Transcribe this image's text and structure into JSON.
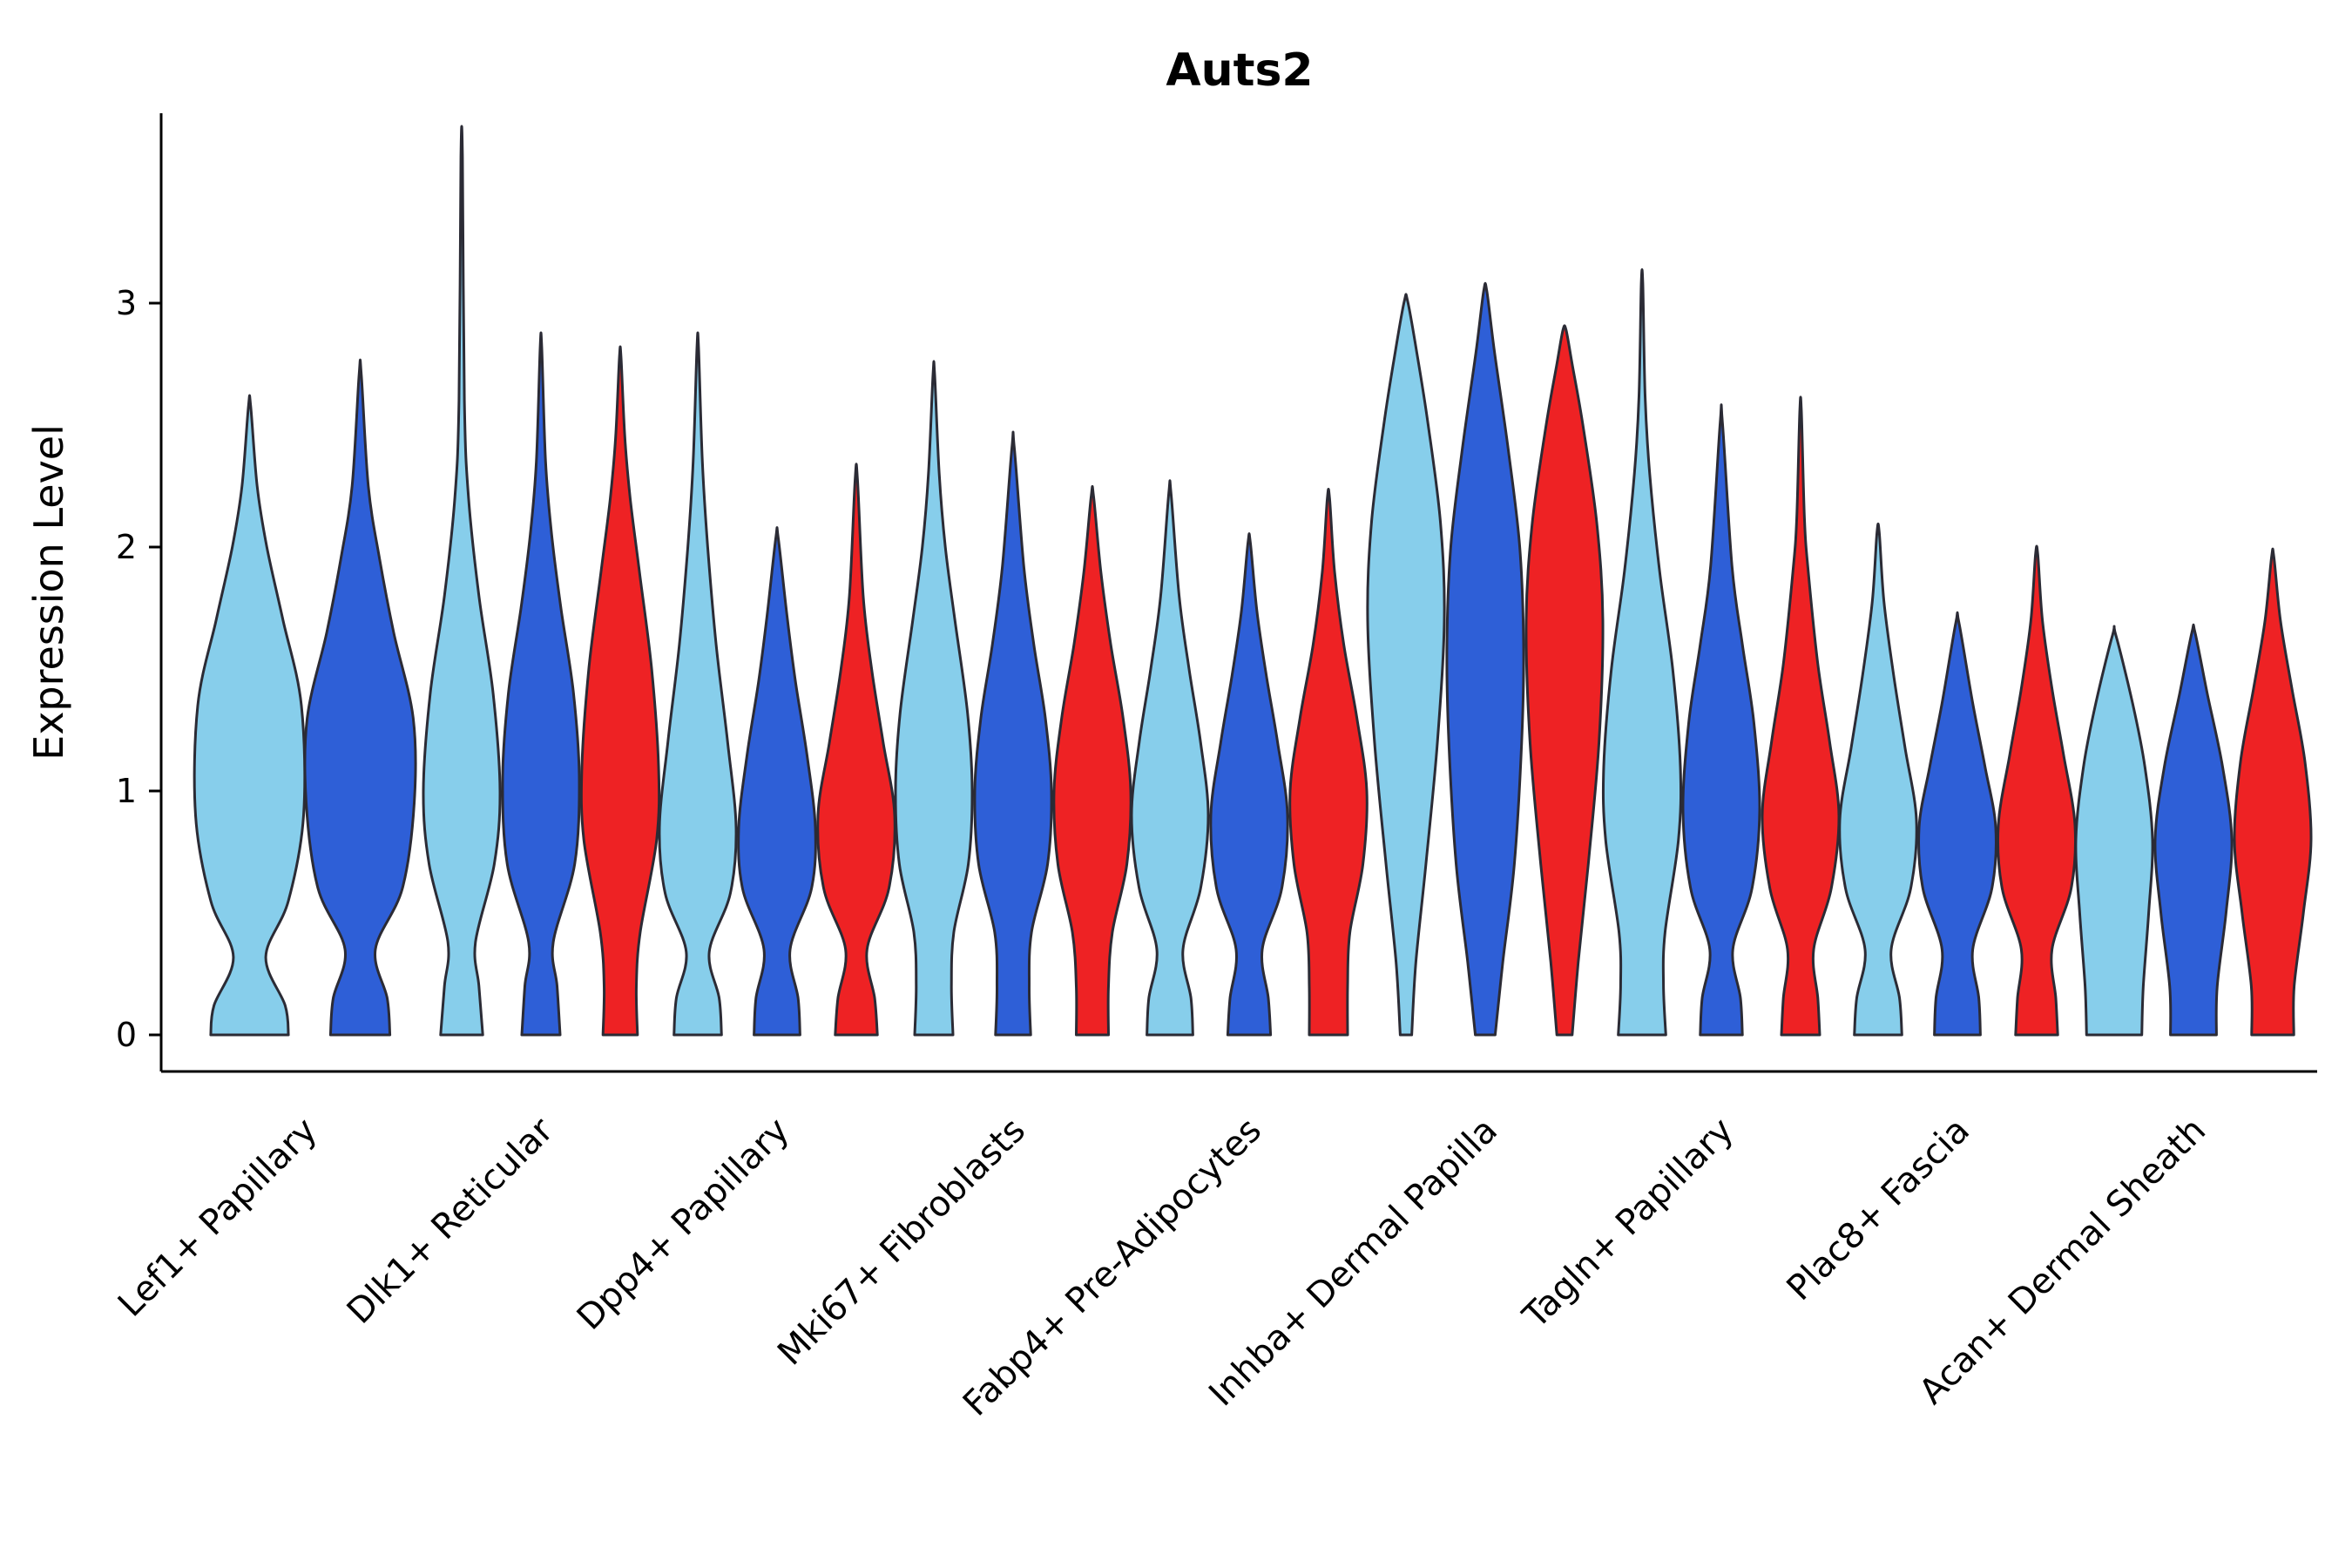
{
  "chart_data": {
    "type": "violin",
    "title": "Auts2",
    "xlabel": "",
    "ylabel": "Expression Level",
    "y_ticks": [
      0,
      1,
      2,
      3
    ],
    "ylim": [
      0,
      3.75
    ],
    "grid": false,
    "legend": "none",
    "colors": {
      "outline": "#2b2b35",
      "axis": "#000000",
      "series": {
        "light_blue": "#87CEEB",
        "blue": "#2E5FD7",
        "red": "#EE2224"
      }
    },
    "categories": [
      "Lef1+ Papillary",
      "Dlk1+ Reticular",
      "Dpp4+ Papillary",
      "Mki67+ Fibroblasts",
      "Fabp4+ Pre-Adipocytes",
      "Inhba+ Dermal Papilla",
      "Tagln+ Papillary",
      "Plac8+ Fascia",
      "Acan+ Dermal Sheath"
    ],
    "violins": [
      {
        "category": "Lef1+ Papillary",
        "series": "light_blue",
        "max": 2.58,
        "profile": [
          [
            0,
            0.72
          ],
          [
            0.12,
            0.66
          ],
          [
            0.32,
            0.3
          ],
          [
            0.55,
            0.72
          ],
          [
            0.9,
            1.0
          ],
          [
            1.35,
            0.96
          ],
          [
            1.7,
            0.62
          ],
          [
            2.0,
            0.32
          ],
          [
            2.25,
            0.14
          ],
          [
            2.58,
            0.02
          ]
        ]
      },
      {
        "category": "Lef1+ Papillary",
        "series": "blue",
        "max": 2.71,
        "profile": [
          [
            0,
            0.55
          ],
          [
            0.15,
            0.5
          ],
          [
            0.35,
            0.28
          ],
          [
            0.6,
            0.78
          ],
          [
            0.95,
            1.0
          ],
          [
            1.3,
            0.98
          ],
          [
            1.65,
            0.62
          ],
          [
            1.95,
            0.36
          ],
          [
            2.25,
            0.15
          ],
          [
            2.71,
            0.02
          ]
        ]
      },
      {
        "category": "Dlk1+ Reticular",
        "series": "light_blue",
        "max": 3.6,
        "profile": [
          [
            0,
            0.55
          ],
          [
            0.2,
            0.45
          ],
          [
            0.38,
            0.36
          ],
          [
            0.7,
            0.85
          ],
          [
            1.0,
            1.0
          ],
          [
            1.4,
            0.82
          ],
          [
            1.8,
            0.45
          ],
          [
            2.2,
            0.18
          ],
          [
            2.6,
            0.07
          ],
          [
            3.6,
            0.02
          ]
        ]
      },
      {
        "category": "Dlk1+ Reticular",
        "series": "blue",
        "max": 2.82,
        "profile": [
          [
            0,
            0.5
          ],
          [
            0.2,
            0.42
          ],
          [
            0.38,
            0.32
          ],
          [
            0.7,
            0.88
          ],
          [
            1.05,
            1.0
          ],
          [
            1.4,
            0.85
          ],
          [
            1.75,
            0.52
          ],
          [
            2.05,
            0.28
          ],
          [
            2.35,
            0.12
          ],
          [
            2.82,
            0.02
          ]
        ]
      },
      {
        "category": "Dlk1+ Reticular",
        "series": "red",
        "max": 2.78,
        "profile": [
          [
            0,
            0.45
          ],
          [
            0.2,
            0.42
          ],
          [
            0.42,
            0.52
          ],
          [
            0.8,
            0.95
          ],
          [
            1.1,
            1.0
          ],
          [
            1.5,
            0.82
          ],
          [
            1.9,
            0.5
          ],
          [
            2.2,
            0.26
          ],
          [
            2.45,
            0.12
          ],
          [
            2.78,
            0.02
          ]
        ]
      },
      {
        "category": "Dpp4+ Papillary",
        "series": "light_blue",
        "max": 2.82,
        "profile": [
          [
            0,
            0.62
          ],
          [
            0.15,
            0.56
          ],
          [
            0.34,
            0.3
          ],
          [
            0.58,
            0.85
          ],
          [
            0.85,
            1.0
          ],
          [
            1.2,
            0.78
          ],
          [
            1.6,
            0.48
          ],
          [
            2.0,
            0.26
          ],
          [
            2.35,
            0.12
          ],
          [
            2.82,
            0.02
          ]
        ]
      },
      {
        "category": "Dpp4+ Papillary",
        "series": "blue",
        "max": 2.04,
        "profile": [
          [
            0,
            0.6
          ],
          [
            0.15,
            0.55
          ],
          [
            0.35,
            0.34
          ],
          [
            0.6,
            0.9
          ],
          [
            0.85,
            1.0
          ],
          [
            1.15,
            0.78
          ],
          [
            1.45,
            0.48
          ],
          [
            1.72,
            0.26
          ],
          [
            2.04,
            0.03
          ]
        ]
      },
      {
        "category": "Dpp4+ Papillary",
        "series": "red",
        "max": 2.28,
        "profile": [
          [
            0,
            0.55
          ],
          [
            0.15,
            0.48
          ],
          [
            0.35,
            0.28
          ],
          [
            0.6,
            0.85
          ],
          [
            0.9,
            1.0
          ],
          [
            1.2,
            0.7
          ],
          [
            1.5,
            0.4
          ],
          [
            1.8,
            0.18
          ],
          [
            2.28,
            0.03
          ]
        ]
      },
      {
        "category": "Mki67+ Fibroblasts",
        "series": "light_blue",
        "max": 2.71,
        "profile": [
          [
            0,
            0.5
          ],
          [
            0.2,
            0.46
          ],
          [
            0.42,
            0.52
          ],
          [
            0.7,
            0.9
          ],
          [
            1.0,
            1.0
          ],
          [
            1.32,
            0.88
          ],
          [
            1.7,
            0.55
          ],
          [
            2.0,
            0.3
          ],
          [
            2.3,
            0.14
          ],
          [
            2.71,
            0.02
          ]
        ]
      },
      {
        "category": "Mki67+ Fibroblasts",
        "series": "blue",
        "max": 2.41,
        "profile": [
          [
            0,
            0.46
          ],
          [
            0.2,
            0.42
          ],
          [
            0.42,
            0.48
          ],
          [
            0.7,
            0.9
          ],
          [
            1.0,
            1.0
          ],
          [
            1.3,
            0.84
          ],
          [
            1.6,
            0.54
          ],
          [
            1.92,
            0.28
          ],
          [
            2.41,
            0.03
          ]
        ]
      },
      {
        "category": "Mki67+ Fibroblasts",
        "series": "red",
        "max": 2.21,
        "profile": [
          [
            0,
            0.42
          ],
          [
            0.2,
            0.42
          ],
          [
            0.42,
            0.52
          ],
          [
            0.7,
            0.9
          ],
          [
            1.0,
            1.0
          ],
          [
            1.3,
            0.8
          ],
          [
            1.6,
            0.48
          ],
          [
            1.9,
            0.22
          ],
          [
            2.21,
            0.03
          ]
        ]
      },
      {
        "category": "Fabp4+ Pre-Adipocytes",
        "series": "light_blue",
        "max": 2.22,
        "profile": [
          [
            0,
            0.6
          ],
          [
            0.15,
            0.55
          ],
          [
            0.35,
            0.34
          ],
          [
            0.6,
            0.8
          ],
          [
            0.9,
            1.0
          ],
          [
            1.2,
            0.8
          ],
          [
            1.5,
            0.5
          ],
          [
            1.8,
            0.24
          ],
          [
            2.22,
            0.03
          ]
        ]
      },
      {
        "category": "Fabp4+ Pre-Adipocytes",
        "series": "blue",
        "max": 2.02,
        "profile": [
          [
            0,
            0.56
          ],
          [
            0.15,
            0.5
          ],
          [
            0.35,
            0.34
          ],
          [
            0.6,
            0.85
          ],
          [
            0.9,
            1.0
          ],
          [
            1.2,
            0.74
          ],
          [
            1.48,
            0.44
          ],
          [
            1.74,
            0.2
          ],
          [
            2.02,
            0.03
          ]
        ]
      },
      {
        "category": "Fabp4+ Pre-Adipocytes",
        "series": "red",
        "max": 2.2,
        "profile": [
          [
            0,
            0.5
          ],
          [
            0.2,
            0.5
          ],
          [
            0.42,
            0.56
          ],
          [
            0.7,
            0.9
          ],
          [
            1.0,
            1.0
          ],
          [
            1.3,
            0.74
          ],
          [
            1.6,
            0.4
          ],
          [
            1.9,
            0.16
          ],
          [
            2.2,
            0.03
          ]
        ]
      },
      {
        "category": "Inhba+ Dermal Papilla",
        "series": "light_blue",
        "max": 3.01,
        "profile": [
          [
            0,
            0.15
          ],
          [
            0.3,
            0.26
          ],
          [
            0.7,
            0.52
          ],
          [
            1.2,
            0.82
          ],
          [
            1.7,
            1.0
          ],
          [
            2.1,
            0.9
          ],
          [
            2.5,
            0.58
          ],
          [
            2.8,
            0.28
          ],
          [
            3.01,
            0.04
          ]
        ]
      },
      {
        "category": "Inhba+ Dermal Papilla",
        "series": "blue",
        "max": 3.05,
        "profile": [
          [
            0,
            0.26
          ],
          [
            0.3,
            0.46
          ],
          [
            0.7,
            0.76
          ],
          [
            1.2,
            0.95
          ],
          [
            1.6,
            1.0
          ],
          [
            2.0,
            0.9
          ],
          [
            2.4,
            0.6
          ],
          [
            2.8,
            0.24
          ],
          [
            3.05,
            0.04
          ]
        ]
      },
      {
        "category": "Inhba+ Dermal Papilla",
        "series": "red",
        "max": 2.89,
        "profile": [
          [
            0,
            0.2
          ],
          [
            0.3,
            0.36
          ],
          [
            0.7,
            0.62
          ],
          [
            1.2,
            0.9
          ],
          [
            1.7,
            1.0
          ],
          [
            2.1,
            0.84
          ],
          [
            2.5,
            0.48
          ],
          [
            2.75,
            0.2
          ],
          [
            2.89,
            0.04
          ]
        ]
      },
      {
        "category": "Tagln+ Papillary",
        "series": "light_blue",
        "max": 3.08,
        "profile": [
          [
            0,
            0.62
          ],
          [
            0.2,
            0.56
          ],
          [
            0.42,
            0.6
          ],
          [
            0.8,
            0.95
          ],
          [
            1.1,
            1.0
          ],
          [
            1.5,
            0.8
          ],
          [
            1.9,
            0.46
          ],
          [
            2.3,
            0.2
          ],
          [
            2.62,
            0.08
          ],
          [
            3.08,
            0.02
          ]
        ]
      },
      {
        "category": "Tagln+ Papillary",
        "series": "blue",
        "max": 2.51,
        "profile": [
          [
            0,
            0.55
          ],
          [
            0.15,
            0.5
          ],
          [
            0.35,
            0.3
          ],
          [
            0.6,
            0.8
          ],
          [
            0.92,
            1.0
          ],
          [
            1.28,
            0.85
          ],
          [
            1.6,
            0.55
          ],
          [
            1.92,
            0.28
          ],
          [
            2.51,
            0.03
          ]
        ]
      },
      {
        "category": "Tagln+ Papillary",
        "series": "red",
        "max": 2.56,
        "profile": [
          [
            0,
            0.5
          ],
          [
            0.15,
            0.45
          ],
          [
            0.35,
            0.34
          ],
          [
            0.6,
            0.8
          ],
          [
            0.9,
            1.0
          ],
          [
            1.2,
            0.76
          ],
          [
            1.52,
            0.45
          ],
          [
            1.9,
            0.2
          ],
          [
            2.12,
            0.1
          ],
          [
            2.56,
            0.02
          ]
        ]
      },
      {
        "category": "Plac8+ Fascia",
        "series": "light_blue",
        "max": 2.06,
        "profile": [
          [
            0,
            0.62
          ],
          [
            0.15,
            0.56
          ],
          [
            0.35,
            0.34
          ],
          [
            0.6,
            0.85
          ],
          [
            0.88,
            1.0
          ],
          [
            1.18,
            0.7
          ],
          [
            1.48,
            0.4
          ],
          [
            1.78,
            0.15
          ],
          [
            2.06,
            0.03
          ]
        ]
      },
      {
        "category": "Plac8+ Fascia",
        "series": "blue",
        "max": 1.69,
        "profile": [
          [
            0,
            0.6
          ],
          [
            0.15,
            0.56
          ],
          [
            0.35,
            0.4
          ],
          [
            0.6,
            0.9
          ],
          [
            0.85,
            1.0
          ],
          [
            1.1,
            0.72
          ],
          [
            1.36,
            0.4
          ],
          [
            1.69,
            0.04
          ]
        ]
      },
      {
        "category": "Plac8+ Fascia",
        "series": "red",
        "max": 1.97,
        "profile": [
          [
            0,
            0.55
          ],
          [
            0.15,
            0.5
          ],
          [
            0.35,
            0.4
          ],
          [
            0.6,
            0.9
          ],
          [
            0.86,
            1.0
          ],
          [
            1.15,
            0.7
          ],
          [
            1.42,
            0.4
          ],
          [
            1.7,
            0.15
          ],
          [
            1.97,
            0.03
          ]
        ]
      },
      {
        "category": "Acan+ Dermal Sheath",
        "series": "light_blue",
        "max": 1.64,
        "profile": [
          [
            0,
            0.72
          ],
          [
            0.2,
            0.76
          ],
          [
            0.5,
            0.9
          ],
          [
            0.8,
            1.0
          ],
          [
            1.1,
            0.8
          ],
          [
            1.36,
            0.48
          ],
          [
            1.64,
            0.04
          ]
        ]
      },
      {
        "category": "Acan+ Dermal Sheath",
        "series": "blue",
        "max": 1.65,
        "profile": [
          [
            0,
            0.6
          ],
          [
            0.2,
            0.62
          ],
          [
            0.5,
            0.85
          ],
          [
            0.8,
            1.0
          ],
          [
            1.1,
            0.76
          ],
          [
            1.4,
            0.36
          ],
          [
            1.65,
            0.04
          ]
        ]
      },
      {
        "category": "Acan+ Dermal Sheath",
        "series": "red",
        "max": 1.96,
        "profile": [
          [
            0,
            0.55
          ],
          [
            0.2,
            0.56
          ],
          [
            0.5,
            0.8
          ],
          [
            0.8,
            1.0
          ],
          [
            1.12,
            0.84
          ],
          [
            1.42,
            0.5
          ],
          [
            1.7,
            0.2
          ],
          [
            1.96,
            0.03
          ]
        ]
      }
    ]
  }
}
